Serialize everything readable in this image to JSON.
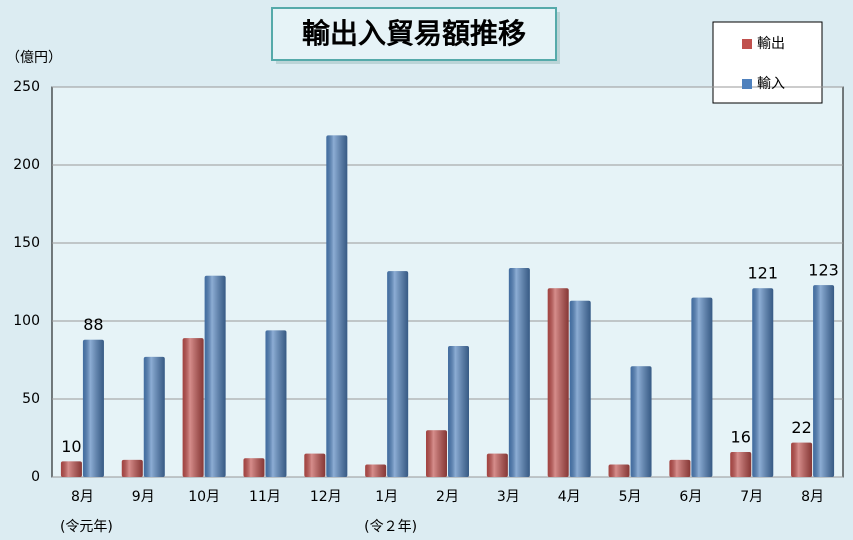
{
  "chart_data": {
    "type": "bar",
    "title": "輸出入貿易額推移",
    "y_unit": "（億円）",
    "categories": [
      "8月",
      "9月",
      "10月",
      "11月",
      "12月",
      "1月",
      "2月",
      "3月",
      "4月",
      "5月",
      "6月",
      "7月",
      "8月"
    ],
    "sub_labels": [
      "(令元年)",
      null,
      null,
      null,
      null,
      "(令２年)",
      null,
      null,
      null,
      null,
      null,
      null,
      null
    ],
    "series": [
      {
        "name": "輸出",
        "color": "#c0504d",
        "values": [
          10,
          11,
          89,
          12,
          15,
          8,
          30,
          15,
          121,
          8,
          11,
          16,
          22
        ],
        "value_labels": [
          "10",
          null,
          null,
          null,
          null,
          null,
          null,
          null,
          null,
          null,
          null,
          "16",
          "22"
        ]
      },
      {
        "name": "輸入",
        "color": "#4f81bd",
        "values": [
          88,
          77,
          129,
          94,
          219,
          132,
          84,
          134,
          113,
          71,
          115,
          121,
          123
        ],
        "value_labels": [
          "88",
          null,
          null,
          null,
          null,
          null,
          null,
          null,
          null,
          null,
          null,
          "121",
          "123"
        ]
      }
    ],
    "ylim": [
      0,
      250
    ],
    "yticks": [
      0,
      50,
      100,
      150,
      200,
      250
    ],
    "grid": true
  }
}
